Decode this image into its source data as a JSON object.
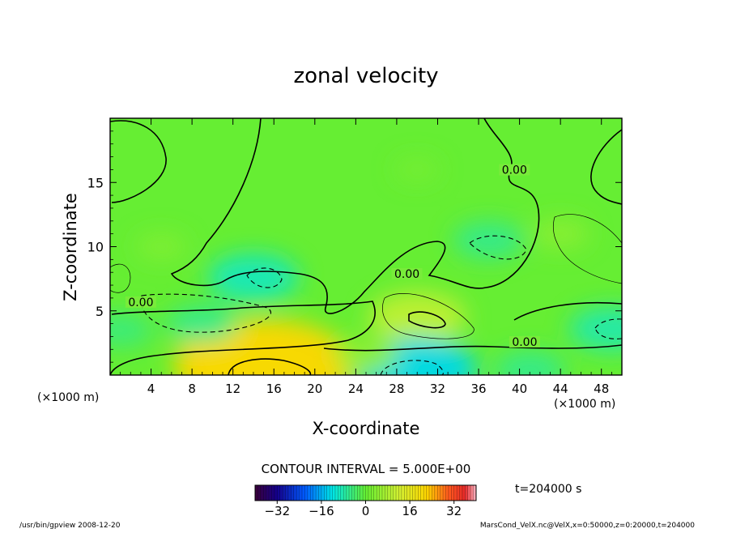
{
  "chart_data": {
    "type": "heatmap",
    "title": "zonal velocity",
    "xlabel": "X-coordinate",
    "ylabel": "Z-coordinate",
    "xunit": "(×1000 m)",
    "yunit": "(×1000 m)",
    "xlim": [
      0,
      50
    ],
    "ylim": [
      0,
      20
    ],
    "xticks": [
      4,
      8,
      12,
      16,
      20,
      24,
      28,
      32,
      36,
      40,
      44,
      48
    ],
    "yticks": [
      5,
      10,
      15
    ],
    "contour_interval_text": "CONTOUR INTERVAL = 5.000E+00",
    "contour_labels": [
      {
        "text": "0.00",
        "x": 39.5,
        "z": 15.8
      },
      {
        "text": "0.00",
        "x": 29.0,
        "z": 7.7
      },
      {
        "text": "0.00",
        "x": 3.0,
        "z": 5.5
      },
      {
        "text": "0.00",
        "x": 40.5,
        "z": 2.4
      }
    ],
    "colorbar": {
      "min": -40,
      "max": 40,
      "tick_values": [
        -32,
        -16,
        0,
        16,
        32
      ],
      "tick_labels": [
        "−32",
        "−16",
        "0",
        "16",
        "32"
      ]
    },
    "time_label": "t=204000 s",
    "field_features": [
      {
        "x": 15,
        "z": 0.7,
        "u": 22
      },
      {
        "x": 30,
        "z": 4.5,
        "u": 10
      },
      {
        "x": 44,
        "z": 11,
        "u": 4
      },
      {
        "x": 9,
        "z": 4.0,
        "u": -6
      },
      {
        "x": 14,
        "z": 7.6,
        "u": -9
      },
      {
        "x": 30,
        "z": 0.5,
        "u": -13
      },
      {
        "x": 37,
        "z": 10.5,
        "u": -6
      },
      {
        "x": 49,
        "z": 3.6,
        "u": -8
      },
      {
        "x": 41,
        "z": 0.4,
        "u": -6
      },
      {
        "x": 1,
        "z": 3.5,
        "u": -5
      },
      {
        "x": 25,
        "z": 1.5,
        "u": 5
      },
      {
        "x": 5,
        "z": 10,
        "u": 3
      },
      {
        "x": 30,
        "z": 16,
        "u": 2
      }
    ]
  },
  "footer": {
    "left": "/usr/bin/gpview   2008-12-20",
    "right": "MarsCond_VelX.nc@VelX,x=0:50000,z=0:20000,t=204000"
  }
}
